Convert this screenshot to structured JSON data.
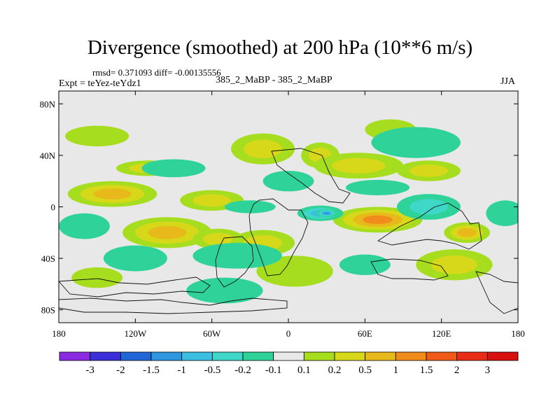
{
  "chart_data": {
    "type": "heatmap",
    "title": "Divergence (smoothed) at 200 hPa (10**6 m/s)",
    "stats_text": "rmsd= 0.371093 diff= -0.00135556",
    "left_label": "Expt = teYez-teYdz1",
    "center_label": "385_2_MaBP - 385_2_MaBP",
    "right_label": "JJA",
    "x_ticks": [
      {
        "value": -180,
        "label": "180"
      },
      {
        "value": -120,
        "label": "120W"
      },
      {
        "value": -60,
        "label": "60W"
      },
      {
        "value": 0,
        "label": "0"
      },
      {
        "value": 60,
        "label": "60E"
      },
      {
        "value": 120,
        "label": "120E"
      },
      {
        "value": 180,
        "label": "180"
      }
    ],
    "y_ticks": [
      {
        "value": 80,
        "label": "80N"
      },
      {
        "value": 40,
        "label": "40N"
      },
      {
        "value": 0,
        "label": "0"
      },
      {
        "value": -40,
        "label": "40S"
      },
      {
        "value": -80,
        "label": "80S"
      }
    ],
    "xlim": [
      -180,
      180
    ],
    "ylim": [
      -90,
      90
    ],
    "colorbar": {
      "levels": [
        "-3",
        "-2",
        "-1.5",
        "-1",
        "-0.5",
        "-0.2",
        "-0.1",
        "0.1",
        "0.2",
        "0.5",
        "1",
        "1.5",
        "2",
        "3"
      ],
      "colors": [
        "#8a2be2",
        "#3a2fd8",
        "#2166d6",
        "#2e97e0",
        "#3bbfe0",
        "#3fd8c8",
        "#2fd39a",
        "#e8e8e8",
        "#a6dd1f",
        "#d7d81a",
        "#e8b91a",
        "#f08c1c",
        "#f05a18",
        "#e82c16",
        "#d81010"
      ]
    },
    "field_features": [
      {
        "lon": -138,
        "lat": 10,
        "rx": 35,
        "ry": 10,
        "level": 3
      },
      {
        "lon": -110,
        "lat": 30,
        "rx": 25,
        "ry": 6,
        "level": 2
      },
      {
        "lon": -60,
        "lat": 5,
        "rx": 25,
        "ry": 8,
        "level": 2
      },
      {
        "lon": -95,
        "lat": -20,
        "rx": 35,
        "ry": 12,
        "level": 3
      },
      {
        "lon": -55,
        "lat": -25,
        "rx": 20,
        "ry": 8,
        "level": 2
      },
      {
        "lon": -20,
        "lat": -28,
        "rx": 25,
        "ry": 10,
        "level": 2
      },
      {
        "lon": -20,
        "lat": 45,
        "rx": 25,
        "ry": 12,
        "level": 2
      },
      {
        "lon": 25,
        "lat": 40,
        "rx": 15,
        "ry": 10,
        "level": 2
      },
      {
        "lon": 70,
        "lat": -10,
        "rx": 35,
        "ry": 10,
        "level": 4
      },
      {
        "lon": 55,
        "lat": 32,
        "rx": 35,
        "ry": 10,
        "level": 2
      },
      {
        "lon": 80,
        "lat": 60,
        "rx": 20,
        "ry": 8,
        "level": 1
      },
      {
        "lon": 110,
        "lat": 28,
        "rx": 25,
        "ry": 8,
        "level": 2
      },
      {
        "lon": 140,
        "lat": -20,
        "rx": 18,
        "ry": 8,
        "level": 3
      },
      {
        "lon": 130,
        "lat": -45,
        "rx": 30,
        "ry": 12,
        "level": 2
      },
      {
        "lon": 5,
        "lat": -50,
        "rx": 30,
        "ry": 12,
        "level": 1
      },
      {
        "lon": -150,
        "lat": 55,
        "rx": 25,
        "ry": 8,
        "level": 1
      },
      {
        "lon": -150,
        "lat": -55,
        "rx": 20,
        "ry": 8,
        "level": 1
      },
      {
        "lon": 25,
        "lat": -5,
        "rx": 18,
        "ry": 6,
        "level": -3
      },
      {
        "lon": 30,
        "lat": -5,
        "rx": 8,
        "ry": 3,
        "level": -4
      },
      {
        "lon": -40,
        "lat": -38,
        "rx": 35,
        "ry": 10,
        "level": -1
      },
      {
        "lon": -120,
        "lat": -40,
        "rx": 25,
        "ry": 10,
        "level": -1
      },
      {
        "lon": -90,
        "lat": 30,
        "rx": 25,
        "ry": 7,
        "level": -1
      },
      {
        "lon": 0,
        "lat": 20,
        "rx": 20,
        "ry": 8,
        "level": -1
      },
      {
        "lon": 70,
        "lat": 15,
        "rx": 25,
        "ry": 6,
        "level": -1
      },
      {
        "lon": 110,
        "lat": 0,
        "rx": 25,
        "ry": 10,
        "level": -2
      },
      {
        "lon": 170,
        "lat": -5,
        "rx": 15,
        "ry": 10,
        "level": -1
      },
      {
        "lon": 100,
        "lat": 50,
        "rx": 35,
        "ry": 12,
        "level": -1
      },
      {
        "lon": -160,
        "lat": -15,
        "rx": 20,
        "ry": 10,
        "level": -1
      },
      {
        "lon": -50,
        "lat": -65,
        "rx": 30,
        "ry": 10,
        "level": -1
      },
      {
        "lon": 60,
        "lat": -45,
        "rx": 20,
        "ry": 8,
        "level": -1
      },
      {
        "lon": -30,
        "lat": 0,
        "rx": 20,
        "ry": 5,
        "level": -1
      }
    ]
  }
}
